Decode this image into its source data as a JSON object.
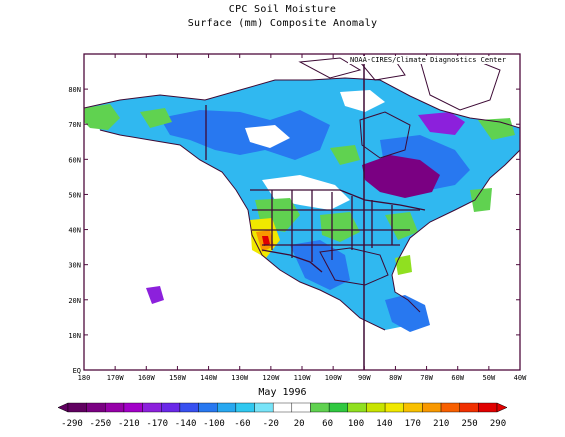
{
  "header": {
    "title": "CPC Soil Moisture",
    "subtitle": "Surface  (mm) Composite Anomaly"
  },
  "credit": "NOAA-CIRES/Climate Diagnostics Center",
  "period": "May 1996",
  "map": {
    "lon_ticks": [
      "180",
      "170W",
      "160W",
      "150W",
      "140W",
      "130W",
      "120W",
      "110W",
      "100W",
      "90W",
      "80W",
      "70W",
      "60W",
      "50W",
      "40W"
    ],
    "lat_ticks": [
      "EQ",
      "10N",
      "20N",
      "30N",
      "40N",
      "50N",
      "60N",
      "70N",
      "80N"
    ],
    "lon_range": [
      -180,
      -40
    ],
    "lat_range": [
      0,
      90
    ]
  },
  "colorbar": {
    "labels": [
      "-290",
      "-250",
      "-210",
      "-170",
      "-140",
      "-100",
      "-60",
      "-20",
      "20",
      "60",
      "100",
      "140",
      "170",
      "210",
      "250",
      "290"
    ],
    "colors": [
      "#600060",
      "#7a0082",
      "#9600a8",
      "#a200c8",
      "#8c20dc",
      "#6a28e8",
      "#3850f0",
      "#2878f0",
      "#28a8f0",
      "#30c8f0",
      "#78e4f8",
      "#ffffff",
      "#ffffff",
      "#60d250",
      "#30c840",
      "#90e020",
      "#c8e400",
      "#f0e800",
      "#f8c000",
      "#f89800",
      "#f86000",
      "#f03000",
      "#e00000"
    ]
  },
  "colors": {
    "frame": "#4d0a3c",
    "coast": "#3d0a35",
    "land_base": "#2878f0"
  }
}
